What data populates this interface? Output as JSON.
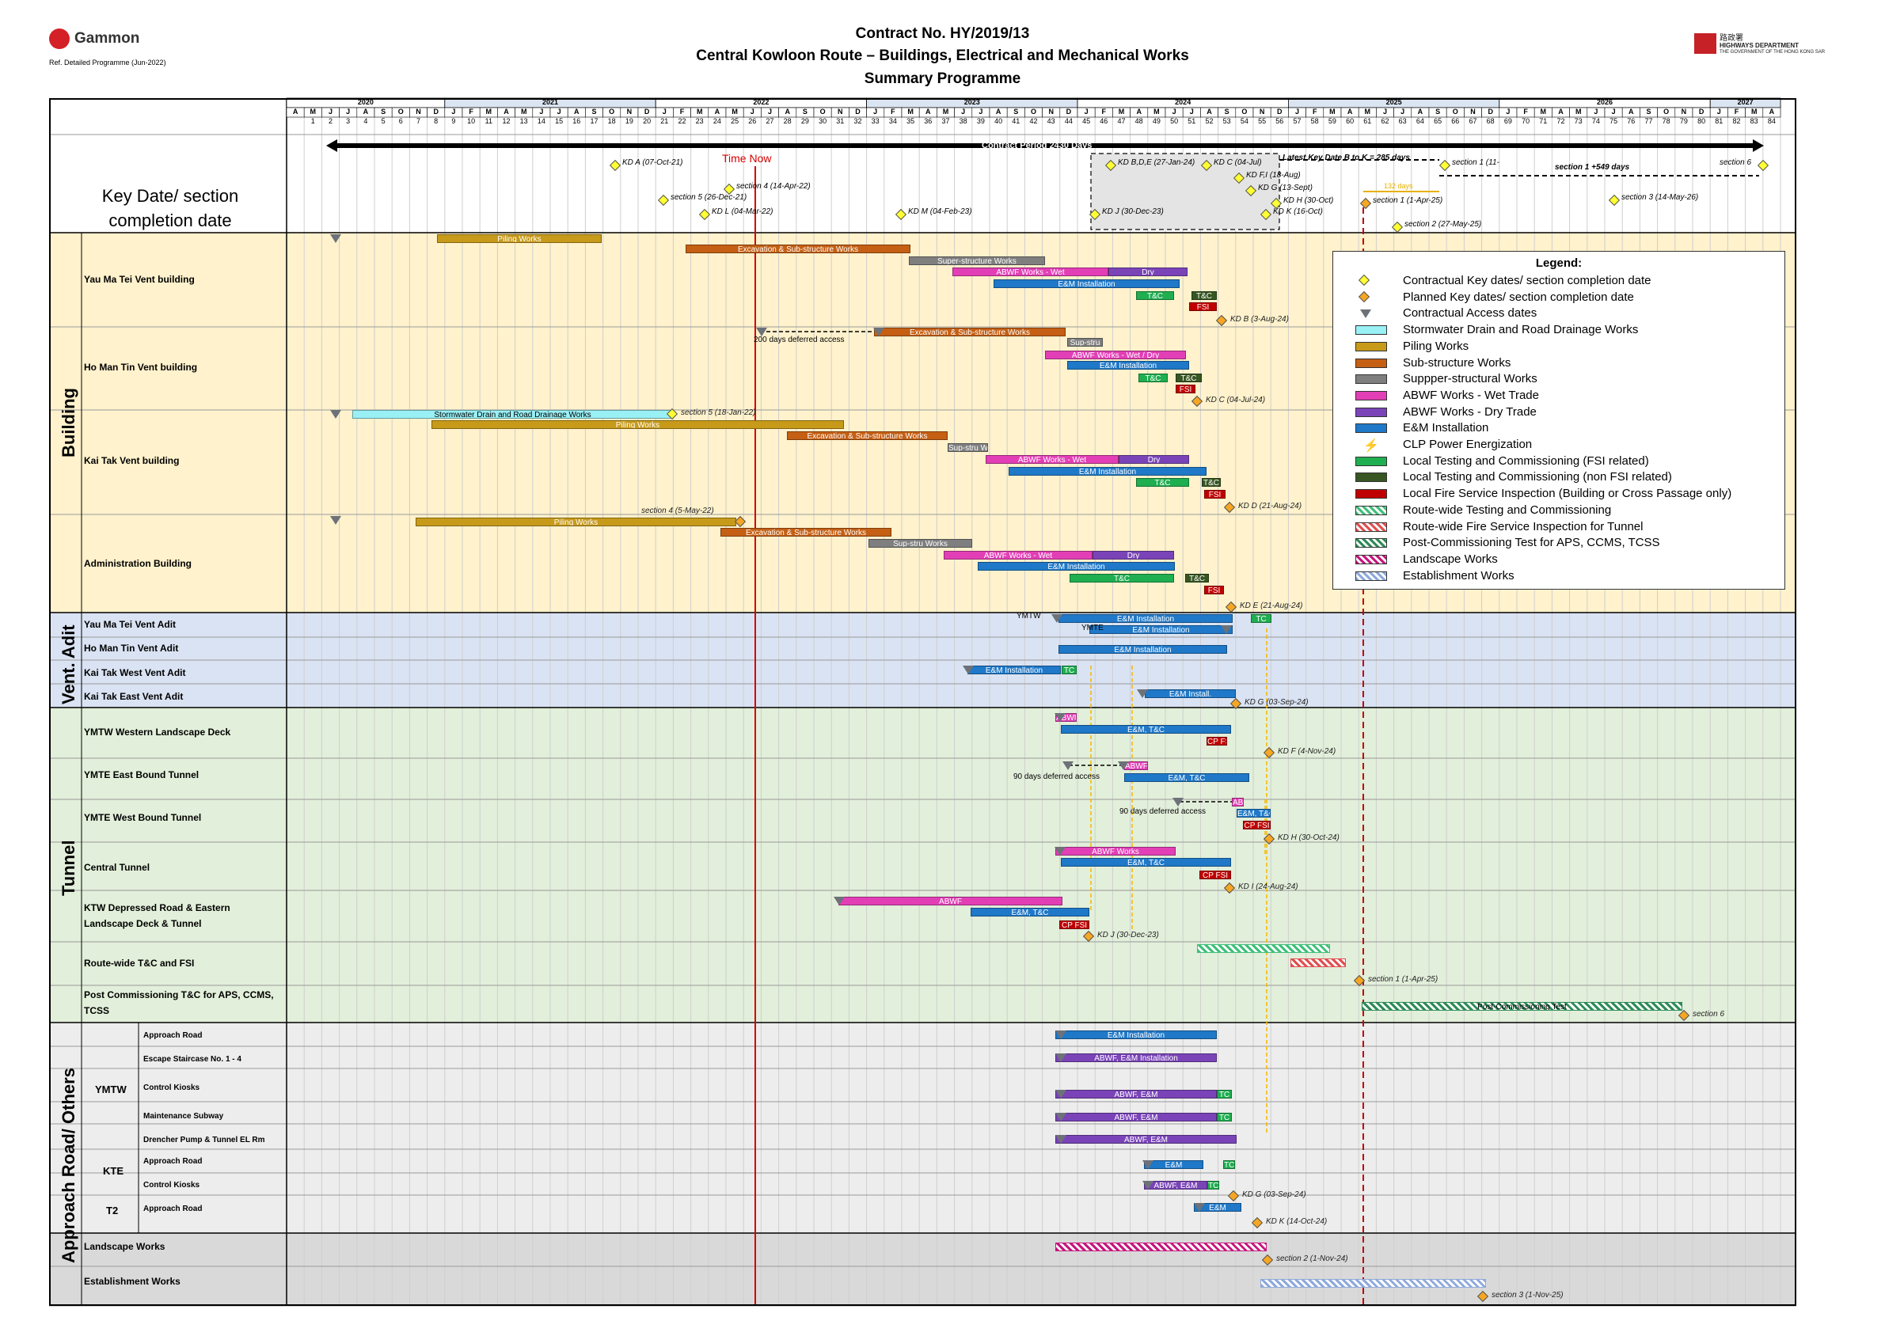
{
  "header": {
    "company": "Gammon",
    "ref": "Ref. Detailed Programme (Jun-2022)",
    "title1": "Contract No. HY/2019/13",
    "title2": "Central Kowloon Route – Buildings, Electrical and Mechanical Works",
    "title3": "Summary Programme",
    "dept_cn": "路政署",
    "dept_en": "HIGHWAYS DEPARTMENT",
    "dept_sub": "THE GOVERNMENT OF THE HONG KONG SAR"
  },
  "timeline": {
    "years": [
      "2020",
      "2021",
      "2022",
      "2023",
      "2024",
      "2025",
      "2026",
      "2027"
    ],
    "months": [
      "A",
      "M",
      "J",
      "J",
      "A",
      "S",
      "O",
      "N",
      "D",
      "J",
      "F",
      "M",
      "A",
      "M",
      "J",
      "J",
      "A",
      "S",
      "O",
      "N",
      "D",
      "J",
      "F",
      "M",
      "A",
      "M",
      "J",
      "J",
      "A",
      "S",
      "O",
      "N",
      "D",
      "J",
      "F",
      "M",
      "A",
      "M",
      "J",
      "J",
      "A",
      "S",
      "O",
      "N",
      "D",
      "J",
      "F",
      "M",
      "A",
      "M",
      "J",
      "J",
      "A",
      "S",
      "O",
      "N",
      "D",
      "J",
      "F",
      "M",
      "A",
      "M",
      "J",
      "J",
      "A",
      "S",
      "O",
      "N",
      "D",
      "J",
      "F",
      "M",
      "A",
      "M",
      "J",
      "J",
      "A",
      "S",
      "O",
      "N",
      "D",
      "J",
      "F",
      "M",
      "A"
    ],
    "time_now_label": "Time Now",
    "contract_period": "Contract Period 2430 Days",
    "latest_kd": "Latest Key Date B to K = 285 days",
    "section1_plus": "section 1 +549 days",
    "days132": "132 days"
  },
  "keydates_header": {
    "label1": "Key Date/ section",
    "label2": "completion date"
  },
  "keydates": [
    {
      "label": "KD A (07-Oct-21)"
    },
    {
      "label": "section 5 (26-Dec-21)"
    },
    {
      "label": "section 4 (14-Apr-22)"
    },
    {
      "label": "KD L (04-Mar-22)"
    },
    {
      "label": "KD M (04-Feb-23)"
    },
    {
      "label": "KD B,D,E (27-Jan-24)"
    },
    {
      "label": "KD C (04-Jul)"
    },
    {
      "label": "KD F,I (18-Aug)"
    },
    {
      "label": "KD G (13-Sept)"
    },
    {
      "label": "KD H (30-Oct)"
    },
    {
      "label": "KD J (30-Dec-23)"
    },
    {
      "label": "KD K (16-Oct)"
    },
    {
      "label": "section 1 (11-"
    },
    {
      "label": "section 1 (1-Apr-25)"
    },
    {
      "label": "section 2 (27-May-25)"
    },
    {
      "label": "section 3 (14-May-26)"
    },
    {
      "label": "section 6"
    }
  ],
  "groups": {
    "building": "Building",
    "vent": "Vent. Adit",
    "tunnel": "Tunnel",
    "approach": "Approach Road/ Others"
  },
  "rows": {
    "ymt_vent": "Yau Ma Tei Vent building",
    "hmt_vent": "Ho Man Tin Vent building",
    "kt_vent": "Kai Tak Vent building",
    "admin": "Administration Building",
    "ymt_adit": "Yau Ma Tei Vent Adit",
    "hmt_adit": "Ho Man Tin Vent Adit",
    "ktw_adit": "Kai Tak West Vent Adit",
    "kte_adit": "Kai Tak East Vent Adit",
    "ymtw_deck": "YMTW Western Landscape Deck",
    "ymte_eb": "YMTE East Bound Tunnel",
    "ymte_wb": "YMTE West Bound Tunnel",
    "central": "Central Tunnel",
    "ktw_dep1": "KTW Depressed Road & Eastern",
    "ktw_dep2": "Landscape Deck & Tunnel",
    "routewide": "Route-wide T&C and FSI",
    "postcomm1": "Post Commissioning T&C for APS, CCMS,",
    "postcomm2": "TCSS",
    "ymtw": "YMTW",
    "kte": "KTE",
    "t2": "T2",
    "approach_road": "Approach Road",
    "escape": "Escape Staircase No. 1 - 4",
    "control_kiosks": "Control Kiosks",
    "maint_subway": "Maintenance Subway",
    "drencher": "Drencher Pump & Tunnel EL Rm",
    "kte_approach": "Approach Road",
    "kte_kiosks": "Control Kiosks",
    "t2_approach": "Approach Road",
    "landscape": "Landscape Works",
    "establishment": "Establishment Works"
  },
  "bars": {
    "piling": "Piling Works",
    "excav": "Excavation & Sub-structure Works",
    "superstr": "Super-structure Works",
    "abwf_wet": "ABWF Works - Wet",
    "dry": "Dry",
    "em": "E&M Installation",
    "tc": "T&C",
    "fsi": "FSI",
    "supstru": "Sup-stru",
    "abwf_wetdry": "ABWF Works - Wet / Dry",
    "stormwater": "Stormwater Drain and Road Drainage Works",
    "supstru_works": "Sup-stru Works",
    "em_tc": "E&M, T&C",
    "cp_fsi": "CP FSI",
    "abwf": "ABWF",
    "abwf_works": "ABWF Works",
    "em_install_short": "E&M Install.",
    "post_comm": "Post-Commissioning Test",
    "abwf_em_install": "ABWF, E&M Installation",
    "abwf_em": "ABWF, E&M",
    "em_short": "E&M",
    "tc_short": "TC"
  },
  "markers": {
    "ymtw": "YMTW",
    "ymte": "YMTE",
    "deferred200": "200 days deferred access",
    "deferred90a": "90 days deferred access",
    "deferred90b": "90 days deferred access"
  },
  "row_keydates": {
    "kd_b": "KD B (3-Aug-24)",
    "kd_c": "KD C (04-Jul-24)",
    "sec5": "section 5 (18-Jan-22)",
    "sec4": "section 4 (5-May-22)",
    "kd_d": "KD D (21-Aug-24)",
    "kd_e": "KD E (21-Aug-24)",
    "kd_g": "KD G (03-Sep-24)",
    "kd_f": "KD F (4-Nov-24)",
    "kd_h": "KD H (30-Oct-24)",
    "kd_i": "KD I (24-Aug-24)",
    "kd_j": "KD J (30-Dec-23)",
    "sec1": "section 1 (1-Apr-25)",
    "sec6": "section 6",
    "kd_g2": "KD G (03-Sep-24)",
    "kd_k": "KD K (14-Oct-24)",
    "sec2": "section 2 (1-Nov-24)",
    "sec3": "section 3 (1-Nov-25)"
  },
  "legend": {
    "title": "Legend:",
    "items": [
      {
        "label": "Contractual Key dates/ section completion date",
        "color": "#ffff33",
        "kind": "diamond"
      },
      {
        "label": "Planned Key dates/ section completion date",
        "color": "#f5a623",
        "kind": "diamond"
      },
      {
        "label": "Contractual Access dates",
        "color": "#6d7278",
        "kind": "triangle"
      },
      {
        "label": "Stormwater Drain and Road Drainage Works",
        "color": "#99f0f5",
        "kind": "bar"
      },
      {
        "label": "Piling Works",
        "color": "#c79a1a",
        "kind": "bar"
      },
      {
        "label": "Sub-structure Works",
        "color": "#c45f14",
        "kind": "bar"
      },
      {
        "label": "Suppper-structural Works",
        "color": "#7f7f7f",
        "kind": "bar"
      },
      {
        "label": "ABWF Works - Wet Trade",
        "color": "#e23fb6",
        "kind": "bar"
      },
      {
        "label": "ABWF Works - Dry Trade",
        "color": "#7a44b8",
        "kind": "bar"
      },
      {
        "label": "E&M Installation",
        "color": "#1f78c8",
        "kind": "bar"
      },
      {
        "label": "CLP Power Energization",
        "color": "#f2d21b",
        "kind": "bolt"
      },
      {
        "label": "Local Testing and Commissioning (FSI related)",
        "color": "#1fae50",
        "kind": "bar"
      },
      {
        "label": "Local Testing and Commissioning (non FSI related)",
        "color": "#375623",
        "kind": "bar"
      },
      {
        "label": "Local Fire Service Inspection (Building or Cross Passage only)",
        "color": "#c00000",
        "kind": "bar"
      },
      {
        "label": "Route-wide Testing and Commissioning",
        "color": "#3fbf7a",
        "kind": "hatch"
      },
      {
        "label": "Route-wide Fire Service Inspection for Tunnel",
        "color": "#e05050",
        "kind": "hatch"
      },
      {
        "label": "Post-Commissioning Test for APS, CCMS, TCSS",
        "color": "#2e8b57",
        "kind": "hatch"
      },
      {
        "label": "Landscape Works",
        "color": "#c6167e",
        "kind": "hatch"
      },
      {
        "label": "Establishment Works",
        "color": "#8ea9db",
        "kind": "hatch"
      }
    ]
  }
}
